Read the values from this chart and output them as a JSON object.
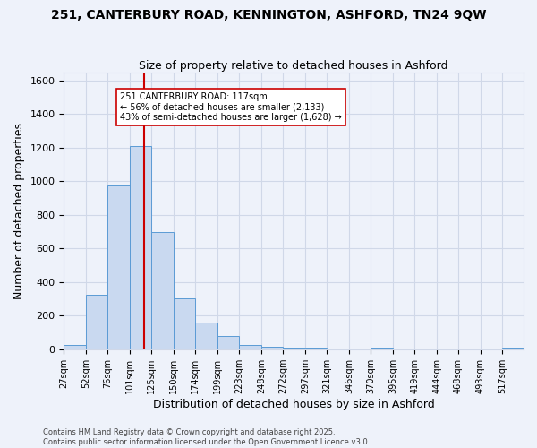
{
  "title_line1": "251, CANTERBURY ROAD, KENNINGTON, ASHFORD, TN24 9QW",
  "title_line2": "Size of property relative to detached houses in Ashford",
  "xlabel": "Distribution of detached houses by size in Ashford",
  "ylabel": "Number of detached properties",
  "bin_labels": [
    "27sqm",
    "52sqm",
    "76sqm",
    "101sqm",
    "125sqm",
    "150sqm",
    "174sqm",
    "199sqm",
    "223sqm",
    "248sqm",
    "272sqm",
    "297sqm",
    "321sqm",
    "346sqm",
    "370sqm",
    "395sqm",
    "419sqm",
    "444sqm",
    "468sqm",
    "493sqm",
    "517sqm"
  ],
  "bin_edges": [
    27,
    52,
    76,
    101,
    125,
    150,
    174,
    199,
    223,
    248,
    272,
    297,
    321,
    346,
    370,
    395,
    419,
    444,
    468,
    493,
    517
  ],
  "bar_heights": [
    25,
    325,
    975,
    1210,
    700,
    305,
    160,
    80,
    25,
    15,
    10,
    10,
    0,
    0,
    10,
    0,
    0,
    0,
    0,
    0,
    10
  ],
  "bar_color": "#c9d9f0",
  "bar_edge_color": "#5b9bd5",
  "property_size": 117,
  "red_line_color": "#cc0000",
  "annotation_text": "251 CANTERBURY ROAD: 117sqm\n← 56% of detached houses are smaller (2,133)\n43% of semi-detached houses are larger (1,628) →",
  "annotation_box_color": "#ffffff",
  "annotation_box_edge_color": "#cc0000",
  "ylim": [
    0,
    1650
  ],
  "yticks": [
    0,
    200,
    400,
    600,
    800,
    1000,
    1200,
    1400,
    1600
  ],
  "grid_color": "#d0d8e8",
  "bg_color": "#eef2fa",
  "footer_line1": "Contains HM Land Registry data © Crown copyright and database right 2025.",
  "footer_line2": "Contains public sector information licensed under the Open Government Licence v3.0."
}
